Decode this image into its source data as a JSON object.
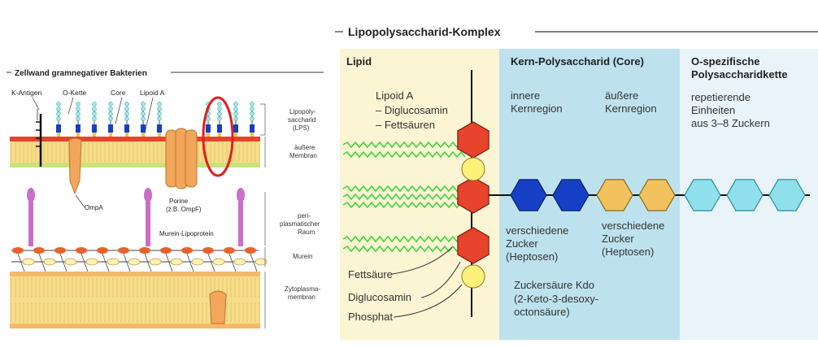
{
  "left_panel": {
    "title": "Zellwand gramnegativer Bakterien",
    "top_labels": {
      "k_antigen": "K-Antigen",
      "o_kette": "O-Kette",
      "core": "Core",
      "lipoid_a": "Lipoid A"
    },
    "right_labels": {
      "lps_1": "Lipopoly-",
      "lps_2": "saccharid",
      "lps_3": "(LPS)",
      "outer_1": "äußere",
      "outer_2": "Membran",
      "peri_1": "peri-",
      "peri_2": "plasmatischer",
      "peri_3": "Raum",
      "murein": "Murein",
      "zyto_1": "Zytoplasma-",
      "zyto_2": "membran"
    },
    "inner_labels": {
      "porine_1": "Porine",
      "porine_2": "(z.B. OmpF)",
      "ompa": "OmpA",
      "murein_lipoprotein": "Murein-Lipoprotein"
    }
  },
  "right_panel": {
    "title": "Lipopolysaccharid-Komplex",
    "headers": {
      "lipid": "Lipid",
      "core": "Kern-Polysaccharid (Core)",
      "ospec_1": "O-spezifische",
      "ospec_2": "Polysaccharidkette"
    },
    "lipoid_a": {
      "line1": "Lipoid A",
      "line2": "– Diglucosamin",
      "line3": "– Fettsäuren"
    },
    "core_regions": {
      "inner_1": "innere",
      "inner_2": "Kernregion",
      "outer_1": "äußere",
      "outer_2": "Kernregion"
    },
    "ochain": {
      "line1": "repetierende",
      "line2": "Einheiten",
      "line3": "aus 3–8 Zuckern"
    },
    "sugars_a": {
      "line1": "verschiedene",
      "line2": "Zucker",
      "line3": "(Heptosen)"
    },
    "sugars_b": {
      "line1": "verschiedene",
      "line2": "Zucker",
      "line3": "(Heptosen)"
    },
    "kdo": {
      "line1": "Zuckersäure Kdo",
      "line2": "(2-Keto-3-desoxy-",
      "line3": "octonsäure)"
    },
    "legend": {
      "fatty_acid": "Fettsäure",
      "diglucosamine": "Diglucosamin",
      "phosphate": "Phosphat"
    }
  },
  "colors": {
    "lipid_bg": "#fbf5d3",
    "core_bg": "#bde2ee",
    "ochain_bg": "#e8f4f8",
    "hex_red": "#e8432c",
    "hex_blue": "#1540c6",
    "hex_yellow": "#f1c25d",
    "hex_cyan": "#8fe0ec",
    "phosphate": "#fff07a",
    "fatty_acid": "#3dd63d",
    "membrane": "#f7dd8a",
    "protein_orange": "#f2a65a",
    "lipoprotein": "#c86fc9",
    "highlight_ring": "#e02020"
  }
}
